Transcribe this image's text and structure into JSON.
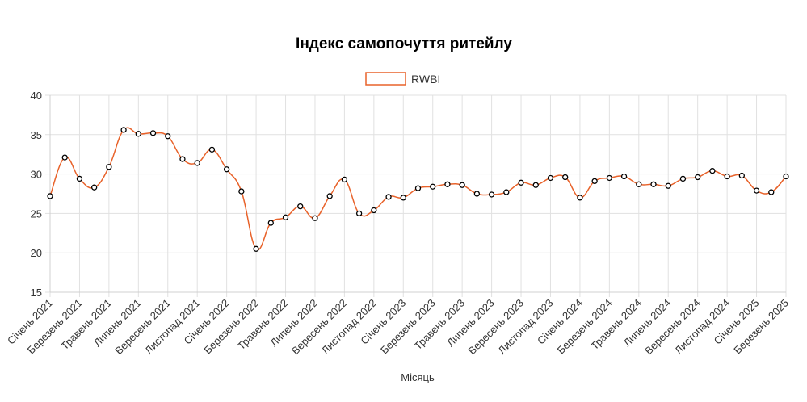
{
  "chart_data": {
    "type": "line",
    "title": "Індекс самопочуття ритейлу",
    "xlabel": "Місяць",
    "ylabel": "",
    "ylim": [
      15,
      40
    ],
    "yticks": [
      15,
      20,
      25,
      30,
      35,
      40
    ],
    "grid": true,
    "legend_position": "top",
    "x": [
      "2021-01",
      "2021-02",
      "2021-03",
      "2021-04",
      "2021-05",
      "2021-06",
      "2021-07",
      "2021-08",
      "2021-09",
      "2021-10",
      "2021-11",
      "2021-12",
      "2022-01",
      "2022-02",
      "2022-03",
      "2022-04",
      "2022-05",
      "2022-06",
      "2022-07",
      "2022-08",
      "2022-09",
      "2022-10",
      "2022-11",
      "2022-12",
      "2023-01",
      "2023-02",
      "2023-03",
      "2023-04",
      "2023-05",
      "2023-06",
      "2023-07",
      "2023-08",
      "2023-09",
      "2023-10",
      "2023-11",
      "2023-12",
      "2024-01",
      "2024-02",
      "2024-03",
      "2024-04",
      "2024-05",
      "2024-06",
      "2024-07",
      "2024-08",
      "2024-09",
      "2024-10",
      "2024-11",
      "2024-12",
      "2025-01",
      "2025-02",
      "2025-03"
    ],
    "tick_labels": [
      "Січень 2021",
      "Березень 2021",
      "Травень 2021",
      "Липень 2021",
      "Вересень 2021",
      "Листопад 2021",
      "Січень 2022",
      "Березень 2022",
      "Травень 2022",
      "Липень 2022",
      "Вересень 2022",
      "Листопад 2022",
      "Січень 2023",
      "Березень 2023",
      "Травень 2023",
      "Липень 2023",
      "Вересень 2023",
      "Листопад 2023",
      "Січень 2024",
      "Березень 2024",
      "Травень 2024",
      "Липень 2024",
      "Вересень 2024",
      "Листопад 2024",
      "Січень 2025",
      "Березень 2025"
    ],
    "series": [
      {
        "name": "RWBI",
        "color": "#e8622a",
        "values": [
          27.2,
          32.1,
          29.4,
          28.3,
          30.9,
          35.6,
          35.1,
          35.2,
          34.8,
          31.9,
          31.4,
          33.1,
          30.6,
          27.8,
          20.5,
          23.8,
          24.5,
          25.9,
          24.4,
          27.2,
          29.3,
          25.0,
          25.4,
          27.1,
          27.0,
          28.2,
          28.4,
          28.7,
          28.6,
          27.5,
          27.4,
          27.7,
          28.9,
          28.6,
          29.5,
          29.6,
          27.0,
          29.1,
          29.5,
          29.7,
          28.7,
          28.7,
          28.5,
          29.4,
          29.6,
          30.4,
          29.7,
          29.8,
          27.9,
          27.7,
          29.7
        ]
      }
    ]
  }
}
